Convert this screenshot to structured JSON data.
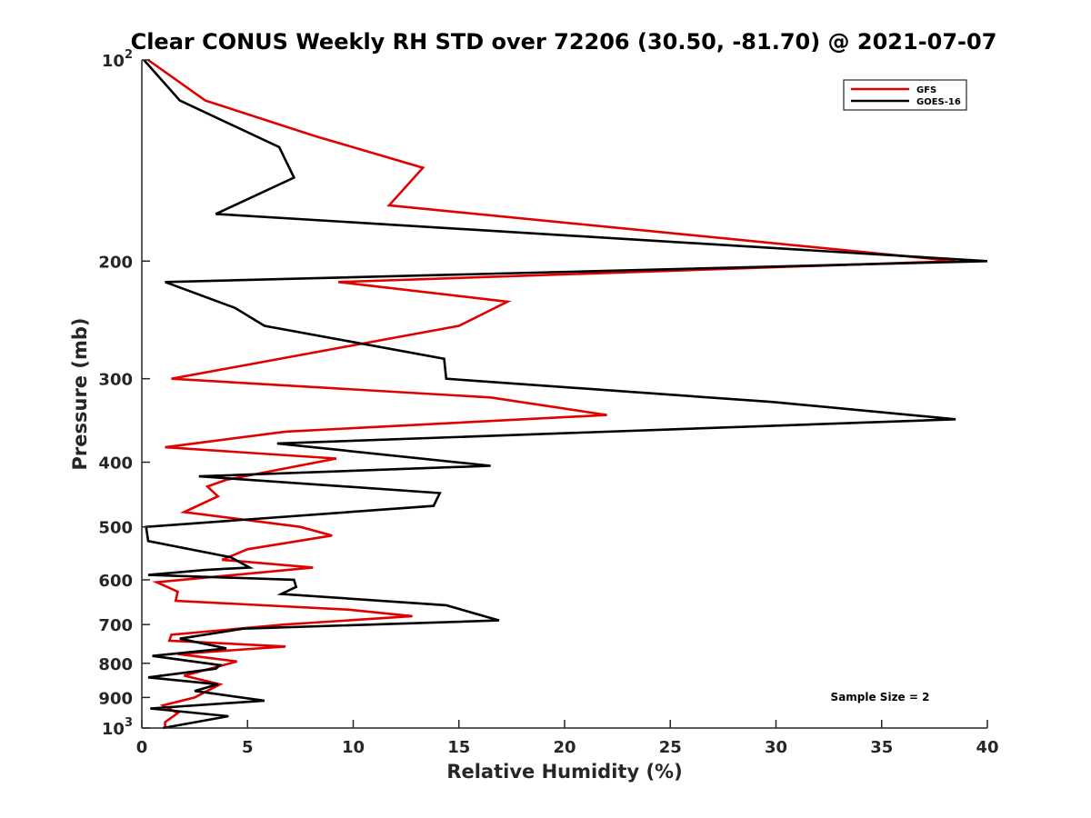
{
  "chart_data": {
    "type": "line",
    "title": "Clear CONUS Weekly RH STD over 72206 (30.50, -81.70) @ 2021-07-07",
    "xlabel": "Relative Humidity (%)",
    "ylabel": "Pressure (mb)",
    "xlim": [
      0,
      40
    ],
    "ylim": [
      100,
      1000
    ],
    "y_scale": "log",
    "y_reversed": true,
    "x_ticks": [
      0,
      5,
      10,
      15,
      20,
      25,
      30,
      35,
      40
    ],
    "y_ticks": [
      {
        "value": 100,
        "label": "10",
        "sup": "2"
      },
      {
        "value": 200,
        "label": "200"
      },
      {
        "value": 300,
        "label": "300"
      },
      {
        "value": 400,
        "label": "400"
      },
      {
        "value": 500,
        "label": "500"
      },
      {
        "value": 600,
        "label": "600"
      },
      {
        "value": 700,
        "label": "700"
      },
      {
        "value": 800,
        "label": "800"
      },
      {
        "value": 900,
        "label": "900"
      },
      {
        "value": 1000,
        "label": "10",
        "sup": "3"
      }
    ],
    "grid": false,
    "legend_position": "top-right",
    "annotation": "Sample Size = 2",
    "series": [
      {
        "name": "GFS",
        "color": "#e00000",
        "points": [
          [
            0.3,
            100
          ],
          [
            3.0,
            115
          ],
          [
            8.2,
            130
          ],
          [
            13.3,
            145
          ],
          [
            11.7,
            165
          ],
          [
            38.5,
            200
          ],
          [
            9.3,
            215
          ],
          [
            17.3,
            230
          ],
          [
            15.0,
            250
          ],
          [
            1.4,
            300
          ],
          [
            16.5,
            320
          ],
          [
            22.0,
            340
          ],
          [
            6.8,
            360
          ],
          [
            1.1,
            380
          ],
          [
            9.2,
            395
          ],
          [
            4.0,
            425
          ],
          [
            3.1,
            435
          ],
          [
            3.6,
            450
          ],
          [
            2.0,
            475
          ],
          [
            7.5,
            500
          ],
          [
            9.0,
            515
          ],
          [
            5.0,
            540
          ],
          [
            3.8,
            560
          ],
          [
            8.1,
            575
          ],
          [
            0.7,
            605
          ],
          [
            1.7,
            625
          ],
          [
            1.6,
            645
          ],
          [
            9.8,
            665
          ],
          [
            12.8,
            680
          ],
          [
            6.8,
            700
          ],
          [
            1.4,
            725
          ],
          [
            1.3,
            740
          ],
          [
            6.8,
            755
          ],
          [
            1.7,
            775
          ],
          [
            4.5,
            795
          ],
          [
            2.0,
            835
          ],
          [
            3.7,
            860
          ],
          [
            2.5,
            900
          ],
          [
            1.0,
            925
          ],
          [
            1.7,
            950
          ],
          [
            1.1,
            980
          ],
          [
            1.1,
            1000
          ]
        ]
      },
      {
        "name": "GOES-16",
        "color": "#000000",
        "points": [
          [
            0.1,
            100
          ],
          [
            1.8,
            115
          ],
          [
            6.5,
            135
          ],
          [
            7.2,
            150
          ],
          [
            3.5,
            170
          ],
          [
            40.0,
            200
          ],
          [
            1.1,
            215
          ],
          [
            4.4,
            235
          ],
          [
            5.8,
            250
          ],
          [
            14.3,
            280
          ],
          [
            14.4,
            300
          ],
          [
            29.8,
            325
          ],
          [
            38.5,
            345
          ],
          [
            6.4,
            375
          ],
          [
            16.5,
            405
          ],
          [
            2.7,
            420
          ],
          [
            14.1,
            445
          ],
          [
            13.8,
            465
          ],
          [
            0.2,
            500
          ],
          [
            0.3,
            525
          ],
          [
            4.2,
            555
          ],
          [
            5.1,
            575
          ],
          [
            3.0,
            580
          ],
          [
            0.3,
            590
          ],
          [
            7.2,
            600
          ],
          [
            7.3,
            615
          ],
          [
            6.6,
            630
          ],
          [
            14.4,
            655
          ],
          [
            16.9,
            690
          ],
          [
            4.8,
            710
          ],
          [
            1.8,
            735
          ],
          [
            4.0,
            760
          ],
          [
            0.5,
            780
          ],
          [
            3.7,
            805
          ],
          [
            3.5,
            815
          ],
          [
            0.3,
            840
          ],
          [
            3.6,
            860
          ],
          [
            2.5,
            880
          ],
          [
            5.8,
            910
          ],
          [
            0.4,
            935
          ],
          [
            4.1,
            960
          ],
          [
            1.0,
            1000
          ]
        ]
      }
    ]
  }
}
